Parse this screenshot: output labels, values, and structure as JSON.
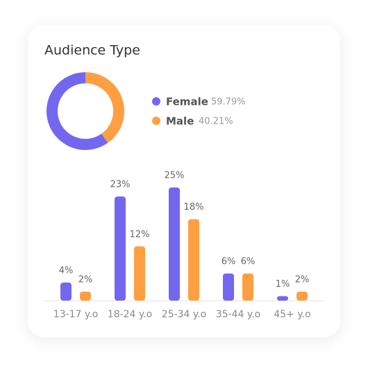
{
  "chart_data": [
    {
      "type": "pie",
      "title": "Audience Type",
      "categories": [
        "Female",
        "Male"
      ],
      "values": [
        59.79,
        40.21
      ],
      "value_labels": [
        "59.79%",
        "40.21%"
      ],
      "colors": [
        "#7367f0",
        "#ff9f43"
      ],
      "donut": true
    },
    {
      "type": "bar",
      "categories": [
        "13-17 y.o",
        "18-24 y.o",
        "25-34 y.o",
        "35-44 y.o",
        "45+ y.o"
      ],
      "series": [
        {
          "color": "#7367f0",
          "values": [
            4,
            23,
            25,
            6,
            1
          ],
          "value_labels": [
            "4%",
            "23%",
            "25%",
            "6%",
            "1%"
          ]
        },
        {
          "color": "#ff9f43",
          "values": [
            2,
            12,
            18,
            6,
            2
          ],
          "value_labels": [
            "2%",
            "12%",
            "18%",
            "6%",
            "2%"
          ]
        }
      ]
    }
  ]
}
